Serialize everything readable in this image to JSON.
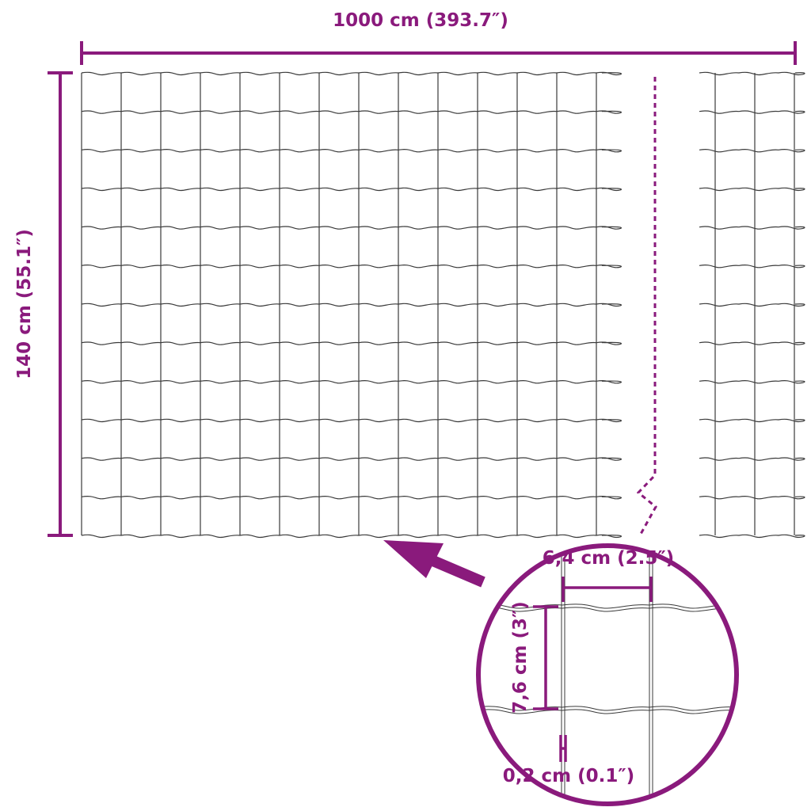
{
  "colors": {
    "accent": "#8a1a7c",
    "mesh": "#3a3a3a"
  },
  "dimensions": {
    "width_label": "1000 cm (393.7″)",
    "height_label": "140 cm (55.1″)"
  },
  "detail": {
    "mesh_width_label": "6,4 cm (2.5″)",
    "mesh_height_label": "7,6 cm (3″)",
    "wire_thickness_label": "0,2 cm (0.1″)"
  },
  "icons": {
    "pointer": "arrow-icon",
    "break": "break-line-icon",
    "magnifier": "detail-circle-icon"
  }
}
